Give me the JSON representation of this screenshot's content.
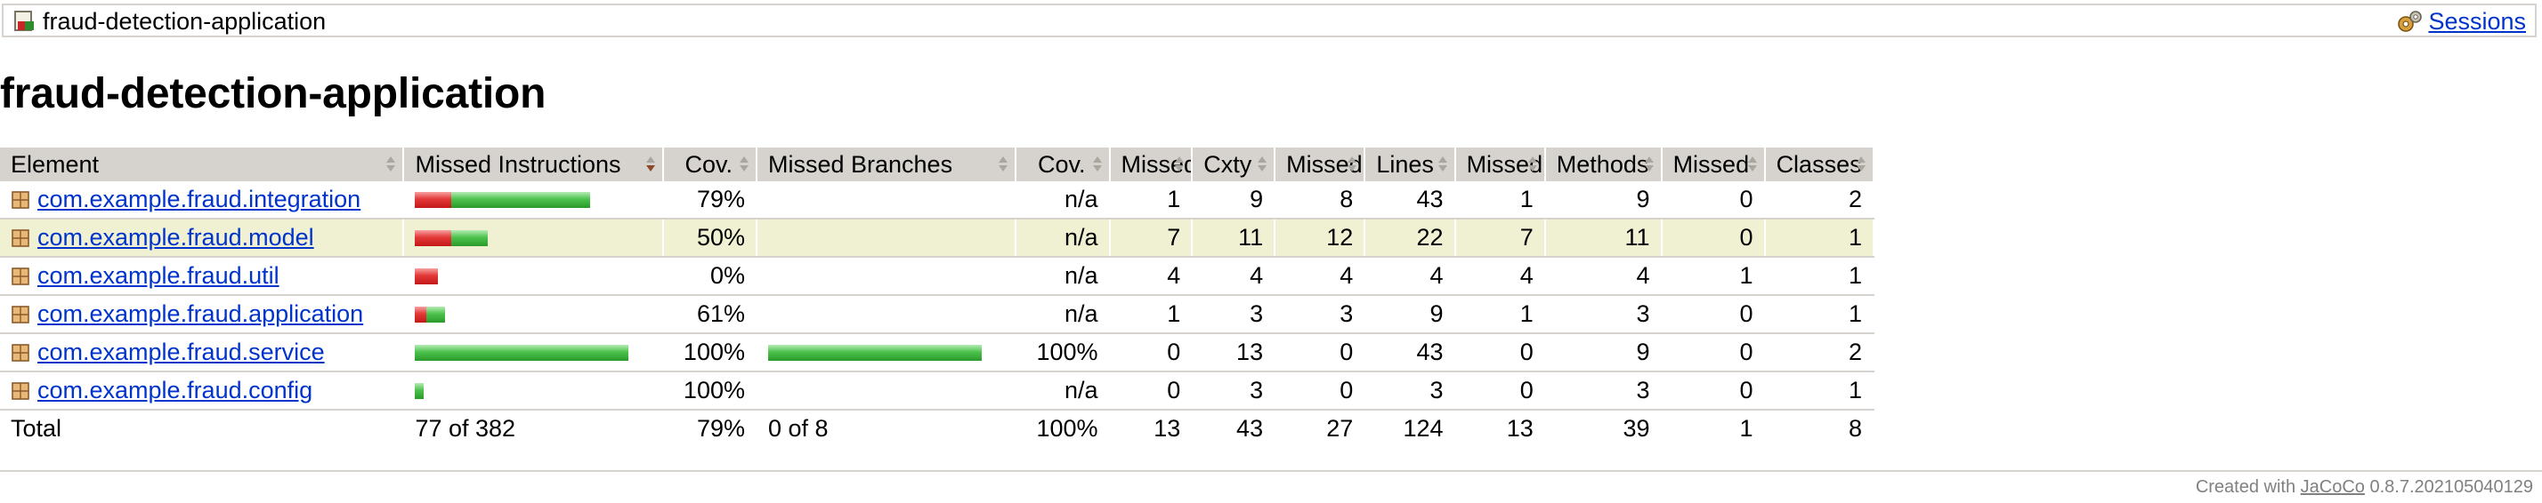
{
  "breadcrumb": {
    "title": "fraud-detection-application",
    "icon": "report-icon",
    "sessions_label": "Sessions",
    "sessions_icon": "gears-icon"
  },
  "page_title": "fraud-detection-application",
  "table": {
    "headers": {
      "element": "Element",
      "missed_instructions": "Missed Instructions",
      "cov_instructions": "Cov.",
      "missed_branches": "Missed Branches",
      "cov_branches": "Cov.",
      "missed_cxty": "Missed",
      "cxty": "Cxty",
      "missed_lines": "Missed",
      "lines": "Lines",
      "missed_methods": "Missed",
      "methods": "Methods",
      "missed_classes": "Missed",
      "classes": "Classes"
    },
    "rows": [
      {
        "name": "com.example.fraud.integration",
        "instr_missed_frac": 0.21,
        "instr_scale": 0.82,
        "cov_i": "79%",
        "branch_missed_frac": null,
        "branch_scale": 0,
        "cov_b": "n/a",
        "missed_cxty": "1",
        "cxty": "9",
        "missed_lines": "8",
        "lines": "43",
        "missed_methods": "1",
        "methods": "9",
        "missed_classes": "0",
        "classes": "2",
        "highlight": false
      },
      {
        "name": "com.example.fraud.model",
        "instr_missed_frac": 0.5,
        "instr_scale": 0.34,
        "cov_i": "50%",
        "branch_missed_frac": null,
        "branch_scale": 0,
        "cov_b": "n/a",
        "missed_cxty": "7",
        "cxty": "11",
        "missed_lines": "12",
        "lines": "22",
        "missed_methods": "7",
        "methods": "11",
        "missed_classes": "0",
        "classes": "1",
        "highlight": true
      },
      {
        "name": "com.example.fraud.util",
        "instr_missed_frac": 1.0,
        "instr_scale": 0.11,
        "cov_i": "0%",
        "branch_missed_frac": null,
        "branch_scale": 0,
        "cov_b": "n/a",
        "missed_cxty": "4",
        "cxty": "4",
        "missed_lines": "4",
        "lines": "4",
        "missed_methods": "4",
        "methods": "4",
        "missed_classes": "1",
        "classes": "1",
        "highlight": false
      },
      {
        "name": "com.example.fraud.application",
        "instr_missed_frac": 0.39,
        "instr_scale": 0.14,
        "cov_i": "61%",
        "branch_missed_frac": null,
        "branch_scale": 0,
        "cov_b": "n/a",
        "missed_cxty": "1",
        "cxty": "3",
        "missed_lines": "3",
        "lines": "9",
        "missed_methods": "1",
        "methods": "3",
        "missed_classes": "0",
        "classes": "1",
        "highlight": false
      },
      {
        "name": "com.example.fraud.service",
        "instr_missed_frac": 0.0,
        "instr_scale": 1.0,
        "cov_i": "100%",
        "branch_missed_frac": 0.0,
        "branch_scale": 1.0,
        "cov_b": "100%",
        "missed_cxty": "0",
        "cxty": "13",
        "missed_lines": "0",
        "lines": "43",
        "missed_methods": "0",
        "methods": "9",
        "missed_classes": "0",
        "classes": "2",
        "highlight": false
      },
      {
        "name": "com.example.fraud.config",
        "instr_missed_frac": 0.0,
        "instr_scale": 0.04,
        "cov_i": "100%",
        "branch_missed_frac": null,
        "branch_scale": 0,
        "cov_b": "n/a",
        "missed_cxty": "0",
        "cxty": "3",
        "missed_lines": "0",
        "lines": "3",
        "missed_methods": "0",
        "methods": "3",
        "missed_classes": "0",
        "classes": "1",
        "highlight": false
      }
    ],
    "total": {
      "label": "Total",
      "instructions": "77 of 382",
      "cov_i": "79%",
      "branches": "0 of 8",
      "cov_b": "100%",
      "missed_cxty": "13",
      "cxty": "43",
      "missed_lines": "27",
      "lines": "124",
      "missed_methods": "13",
      "methods": "39",
      "missed_classes": "1",
      "classes": "8"
    },
    "package_icon": "package-icon",
    "sort_icon": "sort-arrows-icon",
    "colors": {
      "missed": "#e23838",
      "covered": "#4cc24c",
      "highlight": "#f0f0d2",
      "header": "#d6d3ce"
    }
  },
  "footer": {
    "prefix": "Created with ",
    "link": "JaCoCo",
    "version": " 0.8.7.202105040129"
  }
}
